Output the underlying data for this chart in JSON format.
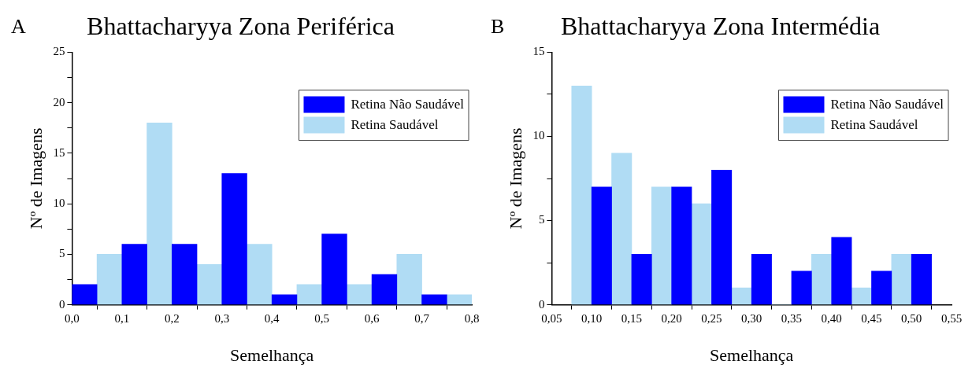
{
  "chart_data": [
    {
      "type": "histogram",
      "title": "Bhattacharyya Zona Periférica",
      "xlabel": "Semelhança",
      "ylabel": "Nº de Imagens",
      "annotations": [
        "A"
      ],
      "legend": "top right",
      "bins": [
        0,
        0.05,
        0.1,
        0.15,
        0.2,
        0.25,
        0.3,
        0.35,
        0.4,
        0.45,
        0.5,
        0.55,
        0.6,
        0.65,
        0.7,
        0.75,
        0.8
      ],
      "series": [
        {
          "name": "Retina Não Saudável",
          "color": "#0000ff",
          "values": [
            2,
            null,
            6,
            null,
            6,
            null,
            13,
            null,
            1,
            null,
            7,
            null,
            3,
            null,
            1,
            null
          ]
        },
        {
          "name": "Retina Saudável",
          "color": "#b0dcf4",
          "values": [
            null,
            5,
            null,
            18,
            null,
            4,
            null,
            6,
            null,
            2,
            null,
            2,
            null,
            5,
            null,
            1
          ]
        }
      ],
      "xlim": [
        0,
        0.8
      ],
      "xticks": [
        {
          "value": 0,
          "label": "0,0"
        },
        {
          "value": 0.1,
          "label": "0,1"
        },
        {
          "value": 0.2,
          "label": "0,2"
        },
        {
          "value": 0.3,
          "label": "0,3"
        },
        {
          "value": 0.4,
          "label": "0,4"
        },
        {
          "value": 0.5,
          "label": "0,5"
        },
        {
          "value": 0.6,
          "label": "0,6"
        },
        {
          "value": 0.7,
          "label": "0,7"
        },
        {
          "value": 0.8,
          "label": "0,8"
        }
      ],
      "ylim": [
        0,
        25
      ],
      "yticks": [
        0,
        {
          "value": 2.5,
          "label": null
        },
        5,
        {
          "value": 7.5,
          "label": null
        },
        10,
        {
          "value": 12.5,
          "label": null
        },
        15,
        {
          "value": 17.5,
          "label": null
        },
        20,
        {
          "value": 22.5,
          "label": null
        },
        25
      ]
    },
    {
      "type": "histogram",
      "title": "Bhattacharyya Zona Intermédia",
      "xlabel": "Semelhança",
      "ylabel": "Nº de Imagens",
      "annotations": [
        "B"
      ],
      "legend": "top right",
      "bins": [
        0.075,
        0.1,
        0.125,
        0.15,
        0.175,
        0.2,
        0.225,
        0.25,
        0.275,
        0.3,
        0.325,
        0.35,
        0.375,
        0.4,
        0.425,
        0.45,
        0.475,
        0.5,
        0.525
      ],
      "series": [
        {
          "name": "Retina Não Saudável",
          "color": "#0000ff",
          "values": [
            null,
            7,
            null,
            3,
            null,
            7,
            null,
            8,
            null,
            3,
            null,
            2,
            null,
            4,
            null,
            2,
            null,
            3
          ]
        },
        {
          "name": "Retina Saudável",
          "color": "#b0dcf4",
          "values": [
            13,
            null,
            9,
            null,
            7,
            null,
            6,
            null,
            1,
            null,
            0,
            null,
            3,
            null,
            1,
            null,
            3,
            null
          ]
        }
      ],
      "xlim": [
        0.05,
        0.55
      ],
      "xticks": [
        {
          "value": 0.05,
          "label": "0,05"
        },
        {
          "value": 0.1,
          "label": "0,10"
        },
        {
          "value": 0.15,
          "label": "0,15"
        },
        {
          "value": 0.2,
          "label": "0,20"
        },
        {
          "value": 0.25,
          "label": "0,25"
        },
        {
          "value": 0.3,
          "label": "0,30"
        },
        {
          "value": 0.35,
          "label": "0,35"
        },
        {
          "value": 0.4,
          "label": "0,40"
        },
        {
          "value": 0.45,
          "label": "0,45"
        },
        {
          "value": 0.5,
          "label": "0,50"
        },
        {
          "value": 0.55,
          "label": "0,55"
        }
      ],
      "ylim": [
        0,
        15
      ],
      "yticks": [
        0,
        {
          "value": 2.5,
          "label": null
        },
        5,
        {
          "value": 7.5,
          "label": null
        },
        10,
        {
          "value": 12.5,
          "label": null
        },
        15
      ]
    }
  ]
}
